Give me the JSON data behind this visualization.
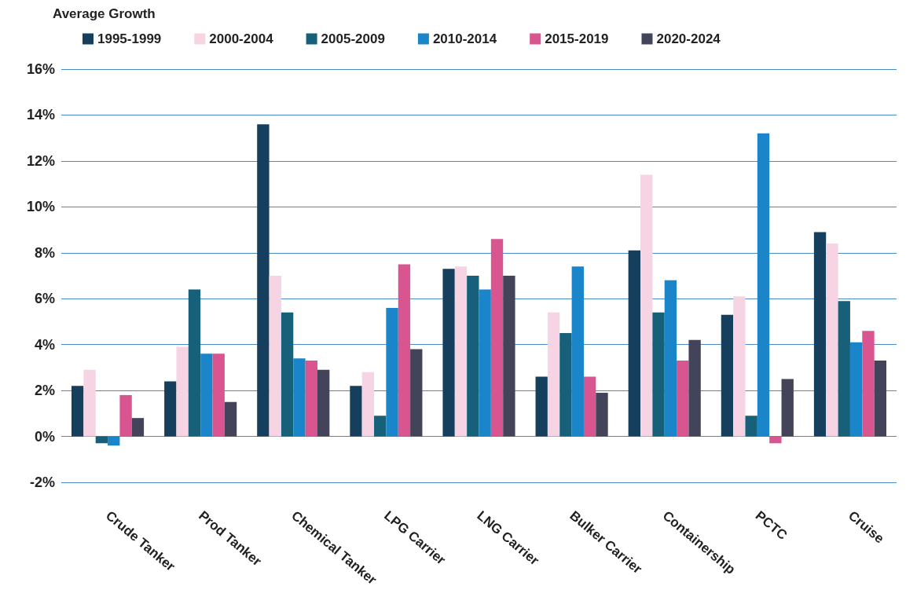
{
  "chart_data": {
    "type": "bar",
    "title": "Average Growth",
    "categories": [
      "Crude Tanker",
      "Prod Tanker",
      "Chemical Tanker",
      "LPG Carrier",
      "LNG Carrier",
      "Bulker Carrier",
      "Containership",
      "PCTC",
      "Cruise"
    ],
    "series": [
      {
        "name": "1995-1999",
        "color": "#153f5c",
        "values": [
          2.2,
          2.4,
          13.6,
          2.2,
          7.3,
          2.6,
          8.1,
          5.3,
          8.9
        ]
      },
      {
        "name": "2000-2004",
        "color": "#f6d4e4",
        "values": [
          2.9,
          3.9,
          7.0,
          2.8,
          7.4,
          5.4,
          11.4,
          6.1,
          8.4
        ]
      },
      {
        "name": "2005-2009",
        "color": "#17607a",
        "values": [
          -0.3,
          6.4,
          5.4,
          0.9,
          7.0,
          4.5,
          5.4,
          0.9,
          5.9
        ]
      },
      {
        "name": "2010-2014",
        "color": "#1a85c8",
        "values": [
          -0.4,
          3.6,
          3.4,
          5.6,
          6.4,
          7.4,
          6.8,
          13.2,
          4.1
        ]
      },
      {
        "name": "2015-2019",
        "color": "#d9558f",
        "values": [
          1.8,
          3.6,
          3.3,
          7.5,
          8.6,
          2.6,
          3.3,
          -0.3,
          4.6
        ]
      },
      {
        "name": "2020-2024",
        "color": "#43435a",
        "values": [
          0.8,
          1.5,
          2.9,
          3.8,
          7.0,
          1.9,
          4.2,
          2.5,
          3.3
        ]
      }
    ],
    "ylim": [
      -2,
      16
    ],
    "yticks": [
      {
        "value": -2,
        "label": "-2%"
      },
      {
        "value": 0,
        "label": "0%"
      },
      {
        "value": 2,
        "label": "2%"
      },
      {
        "value": 4,
        "label": "4%"
      },
      {
        "value": 6,
        "label": "6%"
      },
      {
        "value": 8,
        "label": "8%"
      },
      {
        "value": 10,
        "label": "10%"
      },
      {
        "value": 12,
        "label": "12%"
      },
      {
        "value": 14,
        "label": "14%"
      },
      {
        "value": 16,
        "label": "16%"
      }
    ],
    "grid": "y",
    "legend": "top"
  }
}
